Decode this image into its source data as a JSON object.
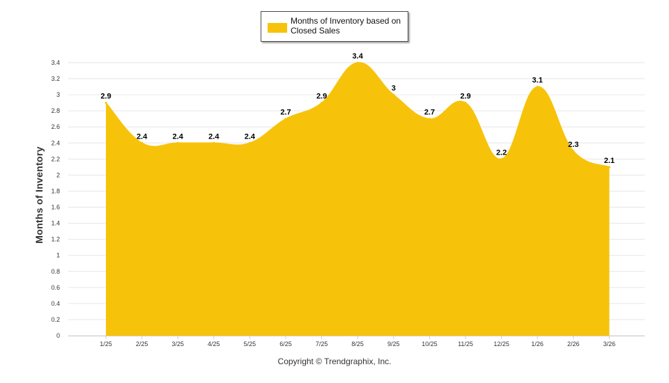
{
  "chart_data": {
    "type": "area",
    "title": "",
    "xlabel": "",
    "ylabel": "Months of Inventory",
    "ylim": [
      0,
      3.4
    ],
    "y_ticks": [
      "0",
      "0.2",
      "0.4",
      "0.6",
      "0.8",
      "1",
      "1.2",
      "1.4",
      "1.6",
      "1.8",
      "2",
      "2.2",
      "2.4",
      "2.6",
      "2.8",
      "3",
      "3.2",
      "3.4"
    ],
    "categories": [
      "1/25",
      "2/25",
      "3/25",
      "4/25",
      "5/25",
      "6/25",
      "7/25",
      "8/25",
      "9/25",
      "10/25",
      "11/25",
      "12/25",
      "1/26",
      "2/26",
      "3/26"
    ],
    "series": [
      {
        "name": "Months of Inventory based on Closed Sales",
        "color": "#f7c30a",
        "values": [
          2.9,
          2.4,
          2.4,
          2.4,
          2.4,
          2.7,
          2.9,
          3.4,
          3,
          2.7,
          2.9,
          2.2,
          3.1,
          2.3,
          2.1
        ],
        "labels": [
          "2.9",
          "2.4",
          "2.4",
          "2.4",
          "2.4",
          "2.7",
          "2.9",
          "3.4",
          "3",
          "2.7",
          "2.9",
          "2.2",
          "3.1",
          "2.3",
          "2.1"
        ]
      }
    ],
    "grid": true,
    "legend_position": "top-center"
  },
  "legend": {
    "label": "Months of Inventory based on Closed Sales",
    "color": "#f7c30a"
  },
  "footer": {
    "copyright": "Copyright © Trendgraphix, Inc."
  }
}
